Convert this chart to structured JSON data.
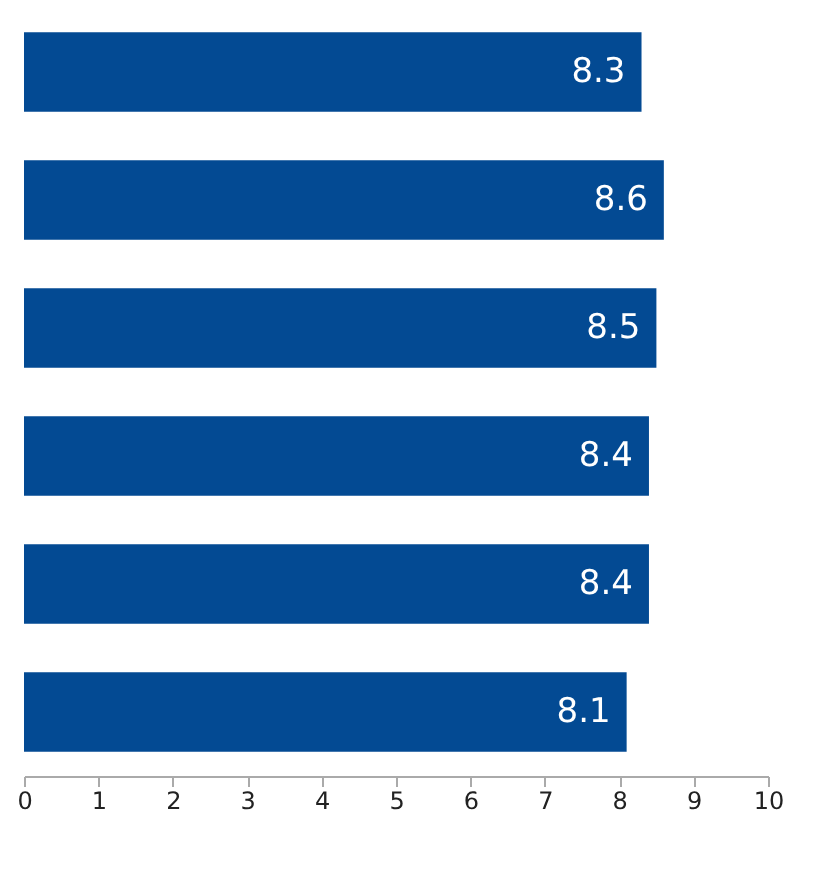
{
  "chart_data": {
    "type": "bar",
    "orientation": "horizontal",
    "categories": [
      null,
      null,
      null,
      null,
      null,
      null
    ],
    "values": [
      8.3,
      8.6,
      8.5,
      8.4,
      8.4,
      8.1
    ],
    "color": "#034a93",
    "data_labels": true,
    "xlim": [
      0,
      10
    ],
    "xticks": [
      0,
      1,
      2,
      3,
      4,
      5,
      6,
      7,
      8,
      9,
      10
    ],
    "grid": false
  }
}
